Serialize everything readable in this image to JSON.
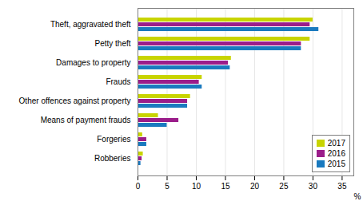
{
  "chart_data": {
    "type": "bar",
    "orientation": "horizontal",
    "categories": [
      "Theft, aggravated theft",
      "Petty theft",
      "Damages to property",
      "Frauds",
      "Other offences against property",
      "Means of payment frauds",
      "Forgeries",
      "Robberies"
    ],
    "series": [
      {
        "name": "2017",
        "color": "#c8d400",
        "values": [
          30.0,
          29.5,
          16.0,
          11.0,
          9.0,
          3.5,
          0.8,
          0.9
        ]
      },
      {
        "name": "2016",
        "color": "#9b1d8a",
        "values": [
          29.5,
          28.0,
          15.5,
          10.5,
          8.5,
          7.0,
          1.5,
          0.7
        ]
      },
      {
        "name": "2015",
        "color": "#1a7abf",
        "values": [
          31.0,
          28.0,
          15.8,
          11.0,
          8.5,
          5.0,
          1.5,
          0.5
        ]
      }
    ],
    "xlabel": "%",
    "xlim": [
      0,
      37
    ],
    "xticks": [
      0,
      5,
      10,
      15,
      20,
      25,
      30,
      35
    ],
    "grid": true,
    "legend": "lower right"
  }
}
